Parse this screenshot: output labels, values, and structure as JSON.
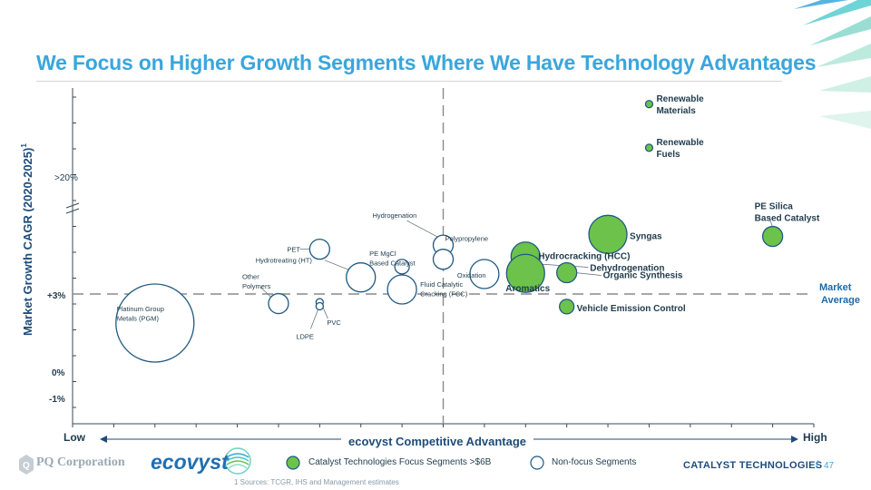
{
  "title": "We Focus on Higher Growth Segments Where We Have Technology Advantages",
  "footer": {
    "legend_focus": "Catalyst Technologies Focus Segments >$6B",
    "legend_nonfocus": "Non-focus Segments",
    "segment": "CATALYST TECHNOLOGIES",
    "separator": "/",
    "page_number": "47",
    "source": "1 Sources: TCGR, IHS and Management estimates",
    "pq_logo": "PQ Corporation",
    "ecovyst_logo": "ecovyst"
  },
  "colors": {
    "title": "#3aa6dc",
    "axis_label": "#1e4c7a",
    "focus_fill": "#6cc24a",
    "focus_stroke": "#1e5a82",
    "nonfocus_stroke": "#1e5a82",
    "market_average": "#1e6aa8"
  },
  "chart_data": {
    "type": "scatter",
    "xlabel": "ecovyst Competitive Advantage",
    "ylabel": "Market Growth CAGR (2020-2025)",
    "ylabel_superscript": "1",
    "x_low_label": "Low",
    "x_high_label": "High",
    "x_ticks": 18,
    "ytick_labels": [
      ">20%",
      "+3%",
      "0%",
      "-1%"
    ],
    "y_axis_break": true,
    "reference_lines": {
      "vertical_center": true,
      "market_average": {
        "label_line1": "Market",
        "label_line2": "Average",
        "y_label": "+3%"
      }
    },
    "legend_placement": "bottom",
    "points": [
      {
        "name": "Renewable Materials",
        "label_line1": "Renewable",
        "label_line2": "Materials",
        "x": 14.0,
        "y": 95.2,
        "size": 1,
        "focus": true
      },
      {
        "name": "Renewable Fuels",
        "label_line1": "Renewable",
        "label_line2": "Fuels",
        "x": 14.0,
        "y": 82.2,
        "size": 1,
        "focus": true
      },
      {
        "name": "PE Silica Based Catalyst",
        "label_line1": "PE Silica",
        "label_line2": "Based Catalyst",
        "x": 17.0,
        "y": 55.8,
        "size": 3,
        "focus": true
      },
      {
        "name": "Syngas",
        "label_line1": "Syngas",
        "label_line2": "",
        "x": 13.0,
        "y": 56.4,
        "size": 5,
        "focus": true
      },
      {
        "name": "Hydrocracking (HCC)",
        "label_line1": "Hydrocracking (HCC)",
        "label_line2": "",
        "x": 11.0,
        "y": 49.8,
        "size": 4,
        "focus": true
      },
      {
        "name": "Dehydrogenation",
        "label_line1": "Dehydrogenation",
        "label_line2": "",
        "x": 11.0,
        "y": 47.7,
        "size": 2,
        "focus": true
      },
      {
        "name": "Organic Synthesis",
        "label_line1": "Organic Synthesis",
        "label_line2": "",
        "x": 12.0,
        "y": 45.0,
        "size": 3,
        "focus": true
      },
      {
        "name": "Aromatics",
        "label_line1": "Aromatics",
        "label_line2": "",
        "x": 11.0,
        "y": 44.8,
        "size": 5,
        "focus": true
      },
      {
        "name": "Vehicle Emission Control",
        "label_line1": "Vehicle Emission Control",
        "label_line2": "",
        "x": 12.0,
        "y": 34.9,
        "size": 2,
        "focus": true
      },
      {
        "name": "Hydrogenation",
        "label_line1": "Hydrogenation",
        "label_line2": "",
        "x": 9.0,
        "y": 53.2,
        "size": 3,
        "focus": false
      },
      {
        "name": "Polypropylene",
        "label_line1": "Polypropylene",
        "label_line2": "",
        "x": 9.0,
        "y": 49.0,
        "size": 3,
        "focus": false
      },
      {
        "name": "PET",
        "label_line1": "PET",
        "label_line2": "",
        "x": 6.0,
        "y": 52.0,
        "size": 3,
        "focus": false
      },
      {
        "name": "PE MgCl Based Catalyst",
        "label_line1": "PE MgCl",
        "label_line2": "Based Catalyst",
        "x": 8.0,
        "y": 46.8,
        "size": 2,
        "focus": false
      },
      {
        "name": "Hydrotreating (HT)",
        "label_line1": "Hydrotreating (HT)",
        "label_line2": "",
        "x": 7.0,
        "y": 43.6,
        "size": 4,
        "focus": false
      },
      {
        "name": "Oxidation",
        "label_line1": "Oxidation",
        "label_line2": "",
        "x": 10.0,
        "y": 44.6,
        "size": 4,
        "focus": false
      },
      {
        "name": "Other Polymers",
        "label_line1": "Other",
        "label_line2": "Polymers",
        "x": 5.0,
        "y": 35.8,
        "size": 3,
        "focus": false
      },
      {
        "name": "Fluid Catalytic Cracking (FCC)",
        "label_line1": "Fluid Catalytic",
        "label_line2": "Cracking (FCC)",
        "x": 8.0,
        "y": 40.0,
        "size": 4,
        "focus": false
      },
      {
        "name": "PVC",
        "label_line1": "PVC",
        "label_line2": "",
        "x": 6.0,
        "y": 36.2,
        "size": 1,
        "focus": false
      },
      {
        "name": "LDPE",
        "label_line1": "LDPE",
        "label_line2": "",
        "x": 6.0,
        "y": 35.0,
        "size": 1,
        "focus": false
      },
      {
        "name": "Platinum Group Metals (PGM)",
        "label_line1": "Platinum Group",
        "label_line2": "Metals (PGM)",
        "x": 2.0,
        "y": 30.0,
        "size": 10,
        "focus": false
      }
    ]
  }
}
